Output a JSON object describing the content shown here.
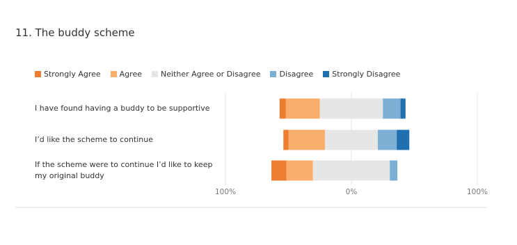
{
  "chart_data": {
    "type": "diverging_bar",
    "title": "11. The buddy scheme",
    "categories": [
      "I have found having a buddy to be supportive",
      "I’d like the scheme to continue",
      "If the scheme were to continue I’d like to keep my original buddy"
    ],
    "series": [
      {
        "name": "Strongly Agree",
        "color": "#ed7d31",
        "values": [
          5,
          4,
          12
        ]
      },
      {
        "name": "Agree",
        "color": "#f9ae6c",
        "values": [
          27,
          29,
          21
        ]
      },
      {
        "name": "Neither Agree or Disagree",
        "color": "#e6e6e6",
        "values": [
          50,
          42,
          61
        ]
      },
      {
        "name": "Disagree",
        "color": "#7bafd4",
        "values": [
          14,
          15,
          6
        ]
      },
      {
        "name": "Strongly Disagree",
        "color": "#2070b0",
        "values": [
          4,
          10,
          0
        ]
      }
    ],
    "xlim": [
      -100,
      100
    ],
    "xticks": [
      {
        "value": -100,
        "label": "100%"
      },
      {
        "value": 0,
        "label": "0%"
      },
      {
        "value": 100,
        "label": "100%"
      }
    ],
    "grid": true
  }
}
